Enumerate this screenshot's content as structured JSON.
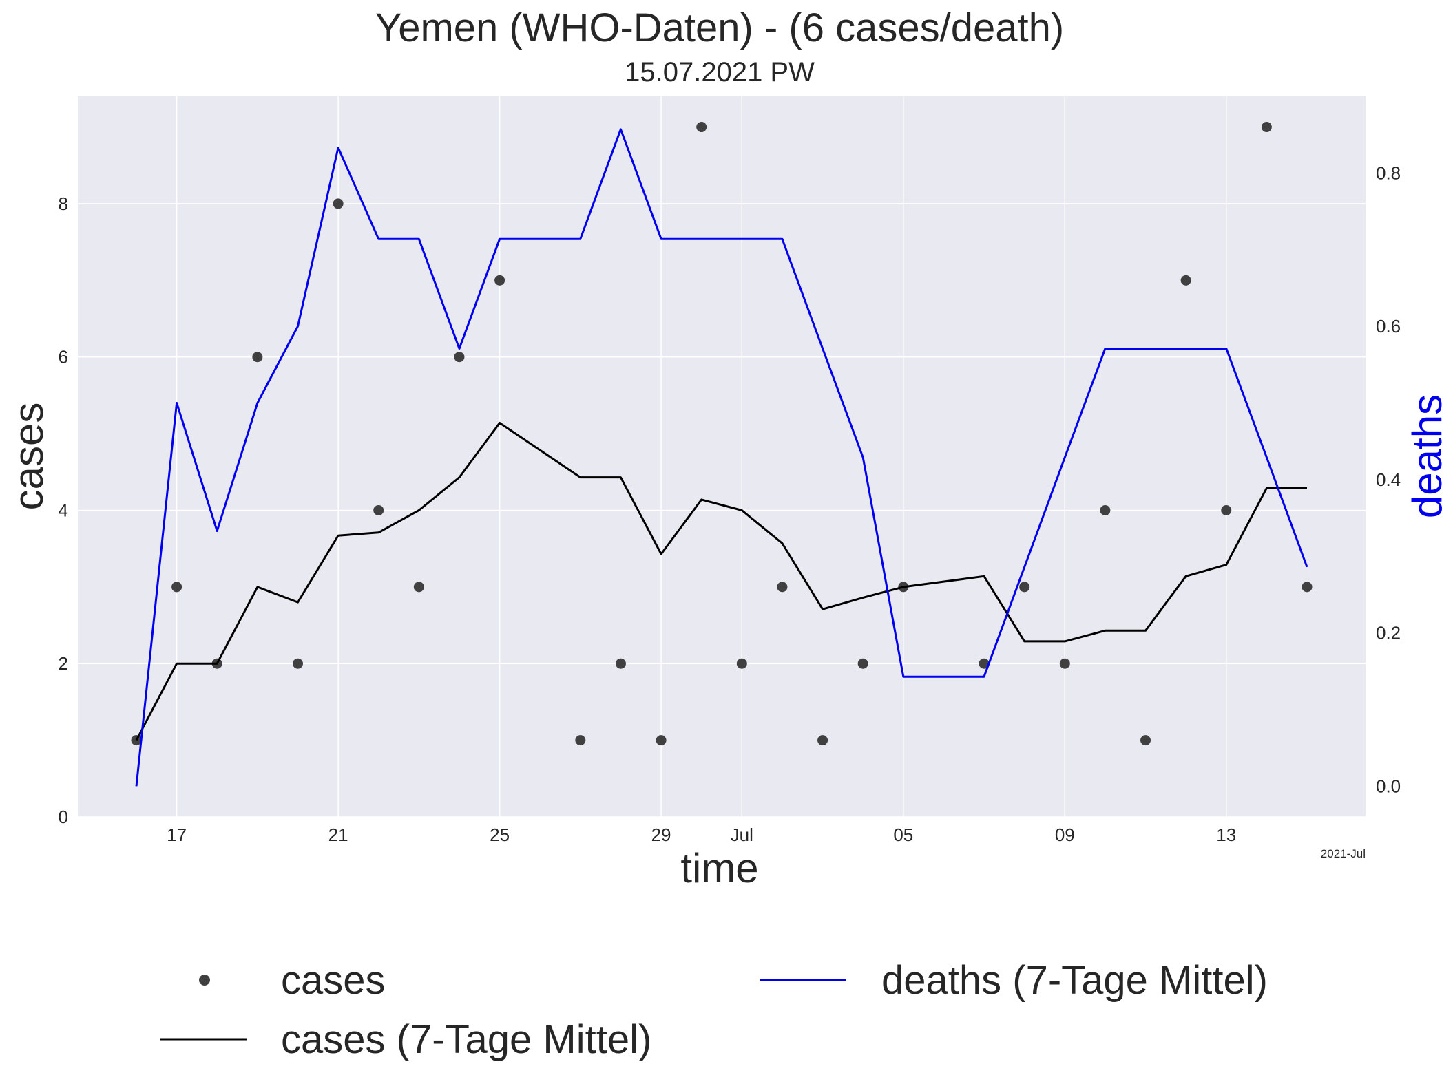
{
  "chart_data": {
    "type": "line",
    "title": "Yemen (WHO-Daten) - (6 cases/death)",
    "subtitle": "15.07.2021 PW",
    "xlabel": "time",
    "ylabel": "cases",
    "y2label": "deaths",
    "x_offset_label": "2021-Jul",
    "x_dates": [
      "2021-06-16",
      "2021-06-17",
      "2021-06-18",
      "2021-06-19",
      "2021-06-20",
      "2021-06-21",
      "2021-06-22",
      "2021-06-23",
      "2021-06-24",
      "2021-06-25",
      "2021-06-26",
      "2021-06-27",
      "2021-06-28",
      "2021-06-29",
      "2021-06-30",
      "2021-07-01",
      "2021-07-02",
      "2021-07-03",
      "2021-07-04",
      "2021-07-05",
      "2021-07-06",
      "2021-07-07",
      "2021-07-08",
      "2021-07-09",
      "2021-07-10",
      "2021-07-11",
      "2021-07-12",
      "2021-07-13",
      "2021-07-14",
      "2021-07-15"
    ],
    "x_tick_dates": [
      "2021-06-17",
      "2021-06-21",
      "2021-06-25",
      "2021-06-29",
      "2021-07-01",
      "2021-07-05",
      "2021-07-09",
      "2021-07-13"
    ],
    "x_tick_labels": [
      "17",
      "21",
      "25",
      "29",
      "Jul",
      "05",
      "09",
      "13"
    ],
    "ylim": [
      0,
      9.4
    ],
    "y_ticks": [
      0,
      2,
      4,
      6,
      8
    ],
    "y2lim": [
      -0.04,
      0.9
    ],
    "y2_ticks": [
      "0.0",
      "0.2",
      "0.4",
      "0.6",
      "0.8"
    ],
    "grid": true,
    "legend_position": "bottom",
    "series": [
      {
        "name": "cases",
        "style": "points",
        "axis": "left",
        "color": "#404040",
        "points": [
          [
            "2021-06-16",
            1
          ],
          [
            "2021-06-17",
            3
          ],
          [
            "2021-06-18",
            2
          ],
          [
            "2021-06-19",
            6
          ],
          [
            "2021-06-20",
            2
          ],
          [
            "2021-06-21",
            8
          ],
          [
            "2021-06-22",
            4
          ],
          [
            "2021-06-23",
            3
          ],
          [
            "2021-06-24",
            6
          ],
          [
            "2021-06-25",
            7
          ],
          [
            "2021-06-27",
            1
          ],
          [
            "2021-06-28",
            2
          ],
          [
            "2021-06-29",
            1
          ],
          [
            "2021-06-30",
            9
          ],
          [
            "2021-07-01",
            2
          ],
          [
            "2021-07-02",
            3
          ],
          [
            "2021-07-03",
            1
          ],
          [
            "2021-07-04",
            2
          ],
          [
            "2021-07-05",
            3
          ],
          [
            "2021-07-07",
            2
          ],
          [
            "2021-07-08",
            3
          ],
          [
            "2021-07-09",
            2
          ],
          [
            "2021-07-10",
            4
          ],
          [
            "2021-07-11",
            1
          ],
          [
            "2021-07-12",
            7
          ],
          [
            "2021-07-13",
            4
          ],
          [
            "2021-07-14",
            9
          ],
          [
            "2021-07-15",
            3
          ]
        ]
      },
      {
        "name": "cases (7-Tage Mittel)",
        "style": "line",
        "axis": "left",
        "color": "#000000",
        "points": [
          [
            "2021-06-16",
            1.0
          ],
          [
            "2021-06-17",
            2.0
          ],
          [
            "2021-06-18",
            2.0
          ],
          [
            "2021-06-19",
            3.0
          ],
          [
            "2021-06-20",
            2.8
          ],
          [
            "2021-06-21",
            3.67
          ],
          [
            "2021-06-22",
            3.71
          ],
          [
            "2021-06-23",
            4.0
          ],
          [
            "2021-06-24",
            4.43
          ],
          [
            "2021-06-25",
            5.14
          ],
          [
            "2021-06-27",
            4.43
          ],
          [
            "2021-06-28",
            4.43
          ],
          [
            "2021-06-29",
            3.43
          ],
          [
            "2021-06-30",
            4.14
          ],
          [
            "2021-07-01",
            4.0
          ],
          [
            "2021-07-02",
            3.57
          ],
          [
            "2021-07-03",
            2.71
          ],
          [
            "2021-07-04",
            2.86
          ],
          [
            "2021-07-05",
            3.0
          ],
          [
            "2021-07-07",
            3.14
          ],
          [
            "2021-07-08",
            2.29
          ],
          [
            "2021-07-09",
            2.29
          ],
          [
            "2021-07-10",
            2.43
          ],
          [
            "2021-07-11",
            2.43
          ],
          [
            "2021-07-12",
            3.14
          ],
          [
            "2021-07-13",
            3.29
          ],
          [
            "2021-07-14",
            4.29
          ],
          [
            "2021-07-15",
            4.29
          ]
        ]
      },
      {
        "name": "deaths (7-Tage Mittel)",
        "style": "line",
        "axis": "right",
        "color": "#0000ee",
        "points": [
          [
            "2021-06-16",
            0.0
          ],
          [
            "2021-06-17",
            0.5
          ],
          [
            "2021-06-18",
            0.333
          ],
          [
            "2021-06-19",
            0.5
          ],
          [
            "2021-06-20",
            0.6
          ],
          [
            "2021-06-21",
            0.833
          ],
          [
            "2021-06-22",
            0.714
          ],
          [
            "2021-06-23",
            0.714
          ],
          [
            "2021-06-24",
            0.571
          ],
          [
            "2021-06-25",
            0.714
          ],
          [
            "2021-06-27",
            0.714
          ],
          [
            "2021-06-28",
            0.857
          ],
          [
            "2021-06-29",
            0.714
          ],
          [
            "2021-06-30",
            0.714
          ],
          [
            "2021-07-01",
            0.714
          ],
          [
            "2021-07-02",
            0.714
          ],
          [
            "2021-07-03",
            0.571
          ],
          [
            "2021-07-04",
            0.429
          ],
          [
            "2021-07-05",
            0.143
          ],
          [
            "2021-07-07",
            0.143
          ],
          [
            "2021-07-08",
            0.286
          ],
          [
            "2021-07-09",
            0.429
          ],
          [
            "2021-07-10",
            0.571
          ],
          [
            "2021-07-11",
            0.571
          ],
          [
            "2021-07-12",
            0.571
          ],
          [
            "2021-07-13",
            0.571
          ],
          [
            "2021-07-14",
            0.429
          ],
          [
            "2021-07-15",
            0.286
          ]
        ]
      }
    ],
    "legend": [
      {
        "label": "cases",
        "marker": "point"
      },
      {
        "label": "cases (7-Tage Mittel)",
        "marker": "line"
      },
      {
        "label": "deaths (7-Tage Mittel)",
        "marker": "line"
      }
    ]
  }
}
